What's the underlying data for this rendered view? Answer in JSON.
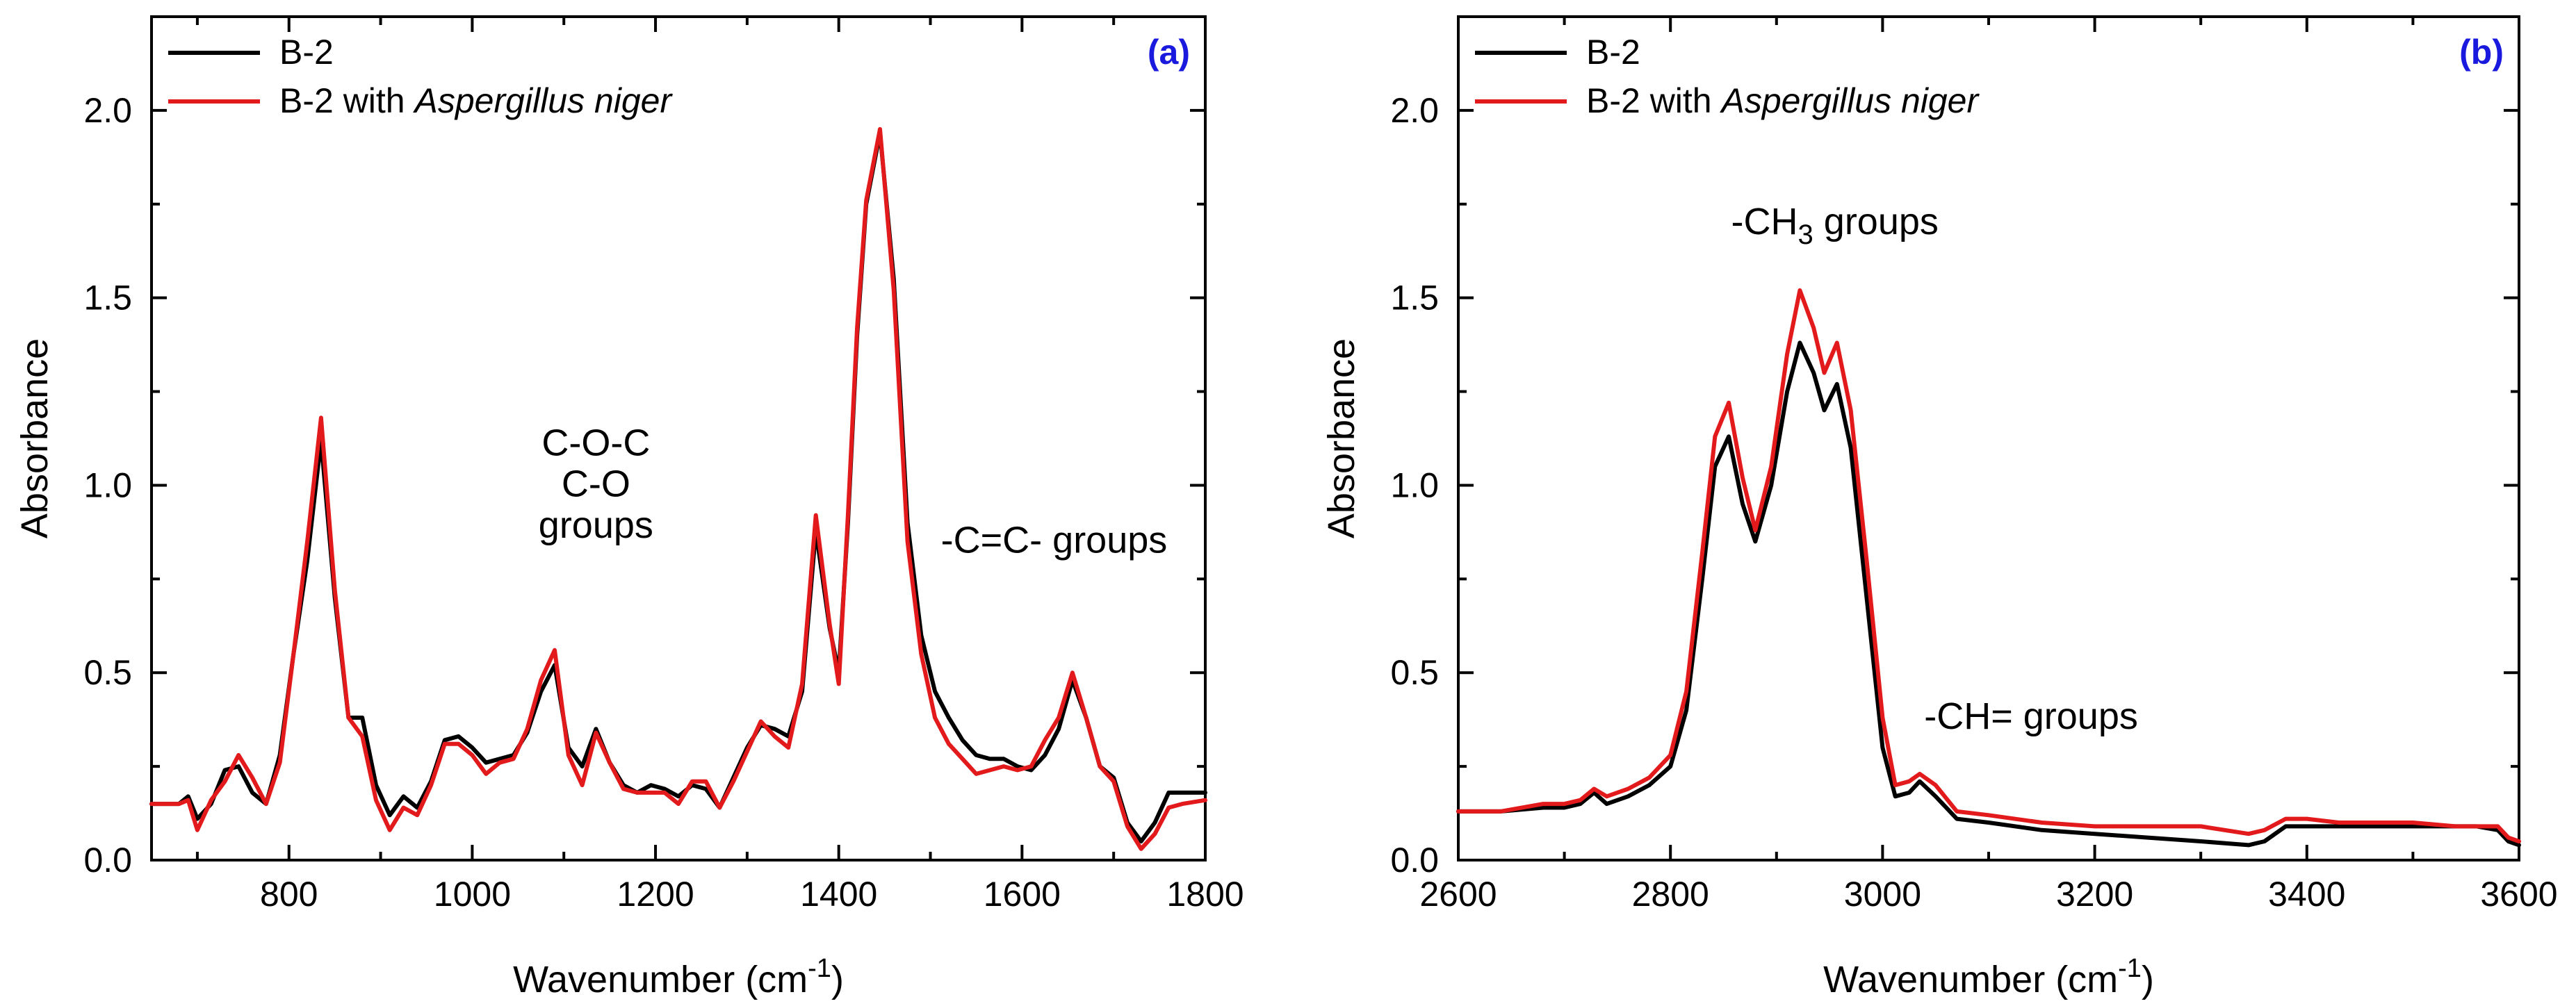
{
  "chart_data": [
    {
      "type": "line",
      "panel_label": "(a)",
      "xlabel": "Wavenumber (cm",
      "xlabel_sup": "-1",
      "xlabel_close": ")",
      "ylabel": "Absorbance",
      "xlim": [
        650,
        1800
      ],
      "ylim": [
        0,
        2.25
      ],
      "xticks": [
        800,
        1000,
        1200,
        1400,
        1600,
        1800
      ],
      "yticks": [
        0.0,
        0.5,
        1.0,
        1.5,
        2.0
      ],
      "ytick_labels": [
        "0.0",
        "0.5",
        "1.0",
        "1.5",
        "2.0"
      ],
      "legend": {
        "location": "top-left",
        "entries": [
          {
            "text": "B-2",
            "color": "#000000"
          },
          {
            "text": "B-2 with ",
            "italic": "Aspergillus niger",
            "color": "#e31a1c"
          }
        ]
      },
      "annotations": [
        {
          "text": "C-O-C",
          "x": 1135,
          "y": 1.08
        },
        {
          "text": "C-O",
          "x": 1135,
          "y": 0.97
        },
        {
          "text": "groups",
          "x": 1135,
          "y": 0.86
        },
        {
          "text": "-C=C- groups",
          "x": 1635,
          "y": 0.82
        }
      ],
      "series": [
        {
          "name": "B-2",
          "color": "#000000",
          "x": [
            650,
            680,
            690,
            700,
            715,
            730,
            745,
            760,
            775,
            790,
            805,
            820,
            835,
            850,
            865,
            880,
            895,
            910,
            925,
            940,
            955,
            970,
            985,
            1000,
            1015,
            1030,
            1045,
            1060,
            1075,
            1090,
            1105,
            1120,
            1135,
            1150,
            1165,
            1180,
            1195,
            1210,
            1225,
            1240,
            1255,
            1270,
            1285,
            1300,
            1315,
            1330,
            1345,
            1360,
            1375,
            1390,
            1400,
            1410,
            1420,
            1430,
            1445,
            1460,
            1475,
            1490,
            1505,
            1520,
            1535,
            1550,
            1565,
            1580,
            1595,
            1610,
            1625,
            1640,
            1655,
            1670,
            1685,
            1700,
            1715,
            1730,
            1745,
            1760,
            1775,
            1800
          ],
          "values": [
            0.15,
            0.15,
            0.17,
            0.11,
            0.15,
            0.24,
            0.25,
            0.18,
            0.15,
            0.28,
            0.55,
            0.8,
            1.12,
            0.7,
            0.38,
            0.38,
            0.2,
            0.12,
            0.17,
            0.14,
            0.21,
            0.32,
            0.33,
            0.3,
            0.26,
            0.27,
            0.28,
            0.34,
            0.45,
            0.52,
            0.3,
            0.25,
            0.35,
            0.26,
            0.2,
            0.18,
            0.2,
            0.19,
            0.17,
            0.2,
            0.19,
            0.14,
            0.22,
            0.3,
            0.36,
            0.35,
            0.33,
            0.45,
            0.88,
            0.62,
            0.5,
            0.9,
            1.4,
            1.75,
            1.94,
            1.55,
            0.9,
            0.6,
            0.45,
            0.38,
            0.32,
            0.28,
            0.27,
            0.27,
            0.25,
            0.24,
            0.28,
            0.35,
            0.48,
            0.38,
            0.25,
            0.22,
            0.1,
            0.05,
            0.1,
            0.18,
            0.18,
            0.18
          ]
        },
        {
          "name": "B-2 with Aspergillus niger",
          "color": "#e31a1c",
          "x": [
            650,
            680,
            690,
            700,
            715,
            730,
            745,
            760,
            775,
            790,
            805,
            820,
            835,
            850,
            865,
            880,
            895,
            910,
            925,
            940,
            955,
            970,
            985,
            1000,
            1015,
            1030,
            1045,
            1060,
            1075,
            1090,
            1105,
            1120,
            1135,
            1150,
            1165,
            1180,
            1195,
            1210,
            1225,
            1240,
            1255,
            1270,
            1285,
            1300,
            1315,
            1330,
            1345,
            1360,
            1375,
            1390,
            1400,
            1410,
            1420,
            1430,
            1445,
            1460,
            1475,
            1490,
            1505,
            1520,
            1535,
            1550,
            1565,
            1580,
            1595,
            1610,
            1625,
            1640,
            1655,
            1670,
            1685,
            1700,
            1715,
            1730,
            1745,
            1760,
            1775,
            1800
          ],
          "values": [
            0.15,
            0.15,
            0.16,
            0.08,
            0.16,
            0.21,
            0.28,
            0.22,
            0.15,
            0.26,
            0.55,
            0.85,
            1.18,
            0.72,
            0.38,
            0.33,
            0.16,
            0.08,
            0.14,
            0.12,
            0.2,
            0.31,
            0.31,
            0.28,
            0.23,
            0.26,
            0.27,
            0.35,
            0.48,
            0.56,
            0.28,
            0.2,
            0.34,
            0.26,
            0.19,
            0.18,
            0.18,
            0.18,
            0.15,
            0.21,
            0.21,
            0.14,
            0.21,
            0.29,
            0.37,
            0.33,
            0.3,
            0.47,
            0.92,
            0.63,
            0.47,
            0.92,
            1.42,
            1.76,
            1.95,
            1.52,
            0.85,
            0.55,
            0.38,
            0.31,
            0.27,
            0.23,
            0.24,
            0.25,
            0.24,
            0.25,
            0.32,
            0.38,
            0.5,
            0.38,
            0.25,
            0.21,
            0.09,
            0.03,
            0.07,
            0.14,
            0.15,
            0.16
          ]
        }
      ]
    },
    {
      "type": "line",
      "panel_label": "(b)",
      "xlabel": "Wavenumber (cm",
      "xlabel_sup": "-1",
      "xlabel_close": ")",
      "ylabel": "Absorbance",
      "xlim": [
        2600,
        3600
      ],
      "ylim": [
        0,
        2.25
      ],
      "xticks": [
        2600,
        2800,
        3000,
        3200,
        3400,
        3600
      ],
      "yticks": [
        0.0,
        0.5,
        1.0,
        1.5,
        2.0
      ],
      "ytick_labels": [
        "0.0",
        "0.5",
        "1.0",
        "1.5",
        "2.0"
      ],
      "legend": {
        "location": "top-left",
        "entries": [
          {
            "text": "B-2",
            "color": "#000000"
          },
          {
            "text": "B-2 with ",
            "italic": "Aspergillus niger",
            "color": "#e31a1c"
          }
        ]
      },
      "annotations": [
        {
          "text": "-CH",
          "sub": "3",
          "rest": " groups",
          "x": 2955,
          "y": 1.67
        },
        {
          "text": "-CH= groups",
          "x": 3140,
          "y": 0.35
        }
      ],
      "series": [
        {
          "name": "B-2",
          "color": "#000000",
          "x": [
            2600,
            2640,
            2680,
            2700,
            2715,
            2728,
            2740,
            2760,
            2780,
            2800,
            2815,
            2830,
            2842,
            2855,
            2868,
            2880,
            2895,
            2910,
            2922,
            2935,
            2945,
            2957,
            2970,
            2985,
            3000,
            3012,
            3025,
            3035,
            3050,
            3070,
            3100,
            3150,
            3200,
            3250,
            3300,
            3345,
            3360,
            3380,
            3400,
            3430,
            3460,
            3500,
            3540,
            3560,
            3580,
            3590,
            3600
          ],
          "values": [
            0.13,
            0.13,
            0.14,
            0.14,
            0.15,
            0.18,
            0.15,
            0.17,
            0.2,
            0.25,
            0.4,
            0.75,
            1.05,
            1.13,
            0.95,
            0.85,
            1.0,
            1.25,
            1.38,
            1.3,
            1.2,
            1.27,
            1.1,
            0.7,
            0.3,
            0.17,
            0.18,
            0.21,
            0.17,
            0.11,
            0.1,
            0.08,
            0.07,
            0.06,
            0.05,
            0.04,
            0.05,
            0.09,
            0.09,
            0.09,
            0.09,
            0.09,
            0.09,
            0.09,
            0.08,
            0.05,
            0.04
          ]
        },
        {
          "name": "B-2 with Aspergillus niger",
          "color": "#e31a1c",
          "x": [
            2600,
            2640,
            2680,
            2700,
            2715,
            2728,
            2740,
            2760,
            2780,
            2800,
            2815,
            2830,
            2842,
            2855,
            2868,
            2880,
            2895,
            2910,
            2922,
            2935,
            2945,
            2957,
            2970,
            2985,
            3000,
            3012,
            3025,
            3035,
            3050,
            3070,
            3100,
            3150,
            3200,
            3250,
            3300,
            3345,
            3360,
            3380,
            3400,
            3430,
            3460,
            3500,
            3540,
            3560,
            3580,
            3590,
            3600
          ],
          "values": [
            0.13,
            0.13,
            0.15,
            0.15,
            0.16,
            0.19,
            0.17,
            0.19,
            0.22,
            0.28,
            0.45,
            0.82,
            1.13,
            1.22,
            1.02,
            0.88,
            1.05,
            1.35,
            1.52,
            1.42,
            1.3,
            1.38,
            1.2,
            0.8,
            0.38,
            0.2,
            0.21,
            0.23,
            0.2,
            0.13,
            0.12,
            0.1,
            0.09,
            0.09,
            0.09,
            0.07,
            0.08,
            0.11,
            0.11,
            0.1,
            0.1,
            0.1,
            0.09,
            0.09,
            0.09,
            0.06,
            0.05
          ]
        }
      ]
    }
  ]
}
